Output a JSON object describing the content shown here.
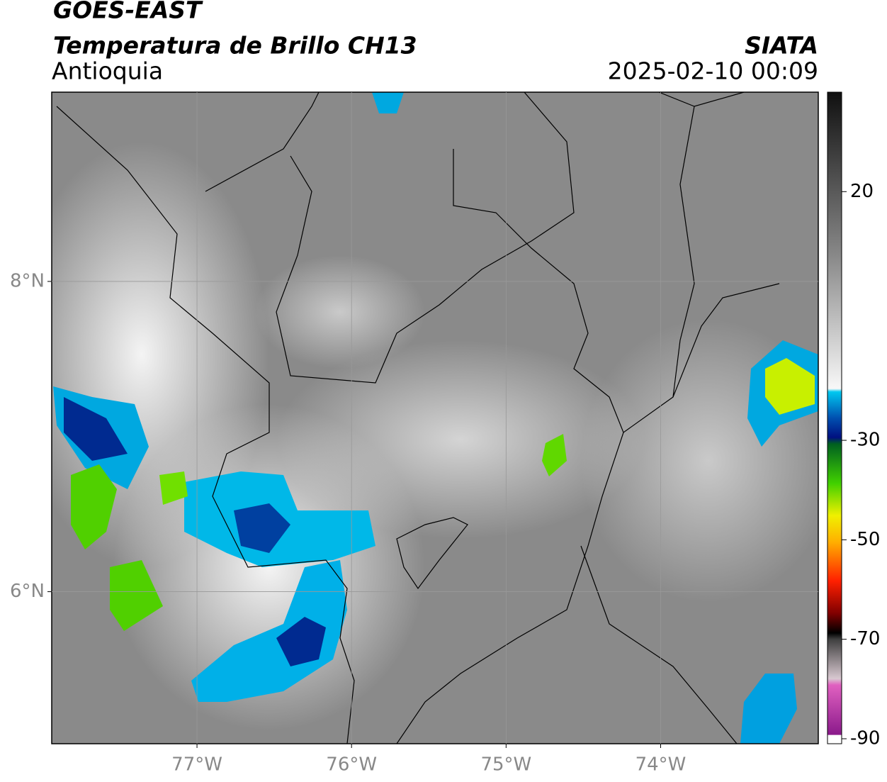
{
  "header": {
    "title": "GOES-EAST",
    "subtitle": "Temperatura de Brillo CH13",
    "region": "Antioquia",
    "source": "SIATA",
    "datetime": "2025-02-10 00:09"
  },
  "map": {
    "xlim": [
      -77.94,
      -72.98
    ],
    "ylim": [
      5.02,
      9.22
    ],
    "xticks": [
      {
        "value": -77,
        "label": "77°W"
      },
      {
        "value": -76,
        "label": "76°W"
      },
      {
        "value": -75,
        "label": "75°W"
      },
      {
        "value": -74,
        "label": "74°W"
      }
    ],
    "yticks": [
      {
        "value": 8,
        "label": "8°N"
      },
      {
        "value": 6,
        "label": "6°N"
      }
    ],
    "grid": true
  },
  "colorbar": {
    "lim": [
      -91,
      40
    ],
    "ticks": [
      -90,
      -70,
      -50,
      -30,
      20
    ]
  }
}
